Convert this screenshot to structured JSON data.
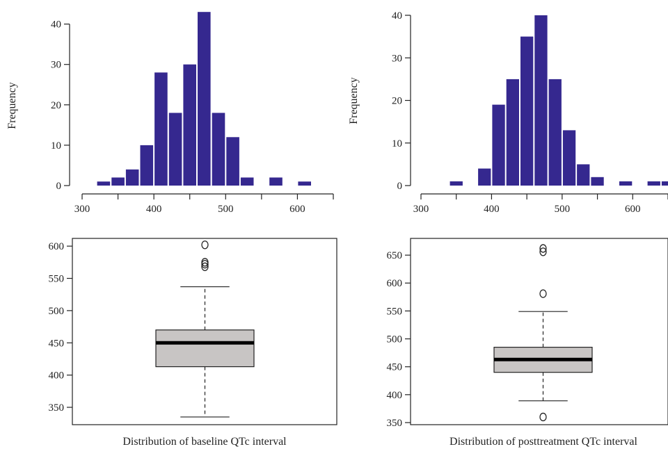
{
  "colors": {
    "bar_fill": "#35288f",
    "box_fill": "#c8c5c4",
    "axis": "#222222",
    "median": "#000000"
  },
  "chart_data": [
    {
      "type": "histogram",
      "title": "",
      "xlabel": "",
      "ylabel": "Frequency",
      "xlim": [
        300,
        650
      ],
      "ylim": [
        0,
        42
      ],
      "xticks": [
        300,
        350,
        400,
        450,
        500,
        550,
        600,
        650
      ],
      "xtick_labels": [
        "300",
        "",
        "400",
        "",
        "500",
        "",
        "600",
        ""
      ],
      "yticks": [
        0,
        10,
        20,
        30,
        40
      ],
      "bins": [
        {
          "start": 320,
          "end": 340,
          "count": 1
        },
        {
          "start": 340,
          "end": 360,
          "count": 2
        },
        {
          "start": 360,
          "end": 380,
          "count": 4
        },
        {
          "start": 380,
          "end": 400,
          "count": 10
        },
        {
          "start": 400,
          "end": 420,
          "count": 28
        },
        {
          "start": 420,
          "end": 440,
          "count": 18
        },
        {
          "start": 440,
          "end": 460,
          "count": 30
        },
        {
          "start": 460,
          "end": 480,
          "count": 43
        },
        {
          "start": 480,
          "end": 500,
          "count": 18
        },
        {
          "start": 500,
          "end": 520,
          "count": 12
        },
        {
          "start": 520,
          "end": 540,
          "count": 2
        },
        {
          "start": 540,
          "end": 560,
          "count": 0
        },
        {
          "start": 560,
          "end": 580,
          "count": 2
        },
        {
          "start": 580,
          "end": 600,
          "count": 0
        },
        {
          "start": 600,
          "end": 620,
          "count": 1
        }
      ]
    },
    {
      "type": "histogram",
      "title": "",
      "xlabel": "",
      "ylabel": "Frequency",
      "xlim": [
        300,
        650
      ],
      "ylim": [
        0,
        40
      ],
      "xticks": [
        300,
        350,
        400,
        450,
        500,
        550,
        600,
        650
      ],
      "xtick_labels": [
        "300",
        "",
        "400",
        "",
        "500",
        "",
        "600",
        ""
      ],
      "yticks": [
        0,
        10,
        20,
        30,
        40
      ],
      "bins": [
        {
          "start": 340,
          "end": 360,
          "count": 1
        },
        {
          "start": 360,
          "end": 380,
          "count": 0
        },
        {
          "start": 380,
          "end": 400,
          "count": 4
        },
        {
          "start": 400,
          "end": 420,
          "count": 19
        },
        {
          "start": 420,
          "end": 440,
          "count": 25
        },
        {
          "start": 440,
          "end": 460,
          "count": 35
        },
        {
          "start": 460,
          "end": 480,
          "count": 40
        },
        {
          "start": 480,
          "end": 500,
          "count": 25
        },
        {
          "start": 500,
          "end": 520,
          "count": 13
        },
        {
          "start": 520,
          "end": 540,
          "count": 5
        },
        {
          "start": 540,
          "end": 560,
          "count": 2
        },
        {
          "start": 560,
          "end": 580,
          "count": 0
        },
        {
          "start": 580,
          "end": 600,
          "count": 1
        },
        {
          "start": 600,
          "end": 620,
          "count": 0
        },
        {
          "start": 620,
          "end": 640,
          "count": 1
        },
        {
          "start": 640,
          "end": 660,
          "count": 1
        }
      ]
    },
    {
      "type": "box",
      "title": "",
      "xlabel": "Distribution of baseline QTc interval",
      "ylabel": "",
      "ylim": [
        322,
        612
      ],
      "yticks": [
        350,
        400,
        450,
        500,
        550,
        600
      ],
      "min": 335,
      "q1": 413,
      "median": 450,
      "q3": 470,
      "max": 537,
      "outliers": [
        568,
        572,
        575,
        602
      ]
    },
    {
      "type": "box",
      "title": "",
      "xlabel": "Distribution of posttreatment QTc interval",
      "ylabel": "",
      "ylim": [
        345,
        680
      ],
      "yticks": [
        350,
        400,
        450,
        500,
        550,
        600,
        650
      ],
      "min": 389,
      "q1": 440,
      "median": 463,
      "q3": 485,
      "max": 549,
      "outliers": [
        360,
        581,
        656,
        662
      ]
    }
  ]
}
